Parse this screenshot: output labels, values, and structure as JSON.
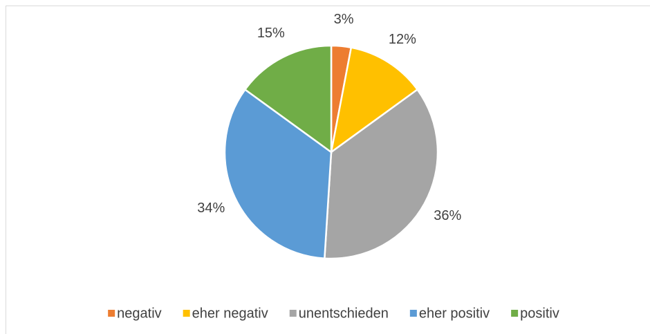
{
  "chart_data": {
    "type": "pie",
    "categories": [
      "negativ",
      "eher negativ",
      "unentschieden",
      "eher positiv",
      "positiv"
    ],
    "values": [
      3,
      12,
      36,
      34,
      15
    ],
    "value_labels": [
      "3%",
      "12%",
      "36%",
      "34%",
      "15%"
    ],
    "colors": [
      "#ED7D31",
      "#FFC000",
      "#A5A5A5",
      "#5B9BD5",
      "#70AD47"
    ],
    "legend": "bottom"
  }
}
